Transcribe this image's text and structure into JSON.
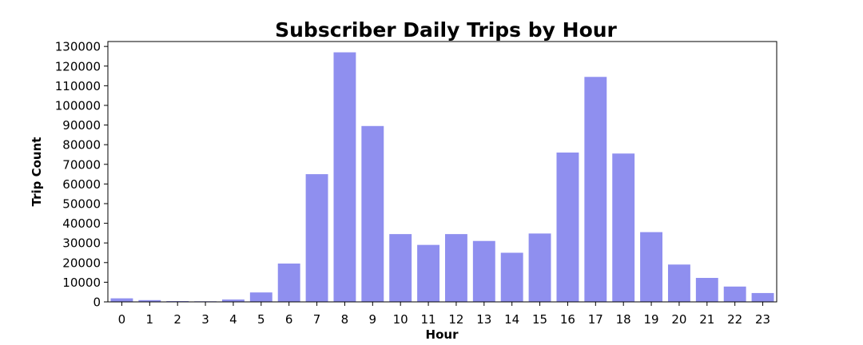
{
  "chart_data": {
    "type": "bar",
    "title": "Subscriber Daily Trips by Hour",
    "xlabel": "Hour",
    "ylabel": "Trip Count",
    "categories": [
      "0",
      "1",
      "2",
      "3",
      "4",
      "5",
      "6",
      "7",
      "8",
      "9",
      "10",
      "11",
      "12",
      "13",
      "14",
      "15",
      "16",
      "17",
      "18",
      "19",
      "20",
      "21",
      "22",
      "23"
    ],
    "values": [
      1800,
      900,
      400,
      300,
      1200,
      4800,
      19500,
      65000,
      127000,
      89500,
      34500,
      29000,
      34500,
      31000,
      25000,
      34800,
      76000,
      114500,
      75500,
      35500,
      19000,
      12200,
      7800,
      4500
    ],
    "ylim": [
      0,
      132500
    ],
    "yticks": [
      0,
      10000,
      20000,
      30000,
      40000,
      50000,
      60000,
      70000,
      80000,
      90000,
      100000,
      110000,
      120000,
      130000
    ],
    "bar_color": "#8f8fef",
    "grid": false,
    "legend": "none"
  }
}
